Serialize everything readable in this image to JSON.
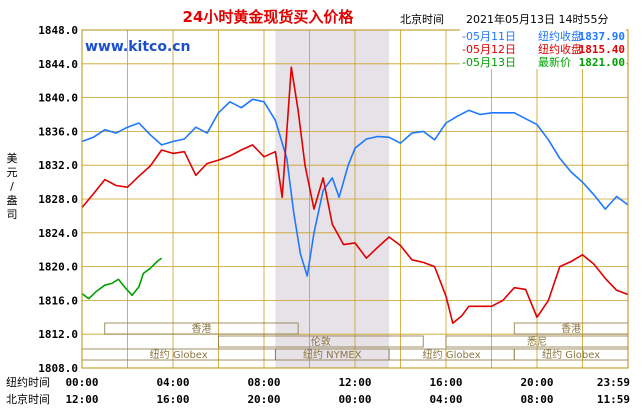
{
  "header": {
    "title": "24小时黄金现货买入价格",
    "tz_label": "北京时间",
    "datetime": "2021年05月13日 14时55分",
    "website": "www.kitco.cn"
  },
  "legend": [
    {
      "date": "-05月11日",
      "label": "纽约收盘",
      "value": "1837.90",
      "color": "#1f78ff"
    },
    {
      "date": "-05月12日",
      "label": "纽约收盘",
      "value": "1815.40",
      "color": "#e00000"
    },
    {
      "date": "-05月13日",
      "label": "最新价",
      "value": "1821.00",
      "color": "#00a000"
    }
  ],
  "ylabel": "美元/盎司",
  "colors": {
    "frame": "#b8900c",
    "grid": "#c9a020",
    "title": "#e00000",
    "website": "#1a4fd0",
    "label_blue": "#1f3fbf",
    "shade": "#e6e2e8",
    "market_text": "#8a7640"
  },
  "markets": [
    {
      "name": "香港",
      "start": 1.0,
      "end": 9.5
    },
    {
      "name": "伦敦",
      "start": 6.0,
      "end": 15.0
    },
    {
      "name": "纽约 Globex",
      "start": 0,
      "end": 8.5
    },
    {
      "name": "纽约 NYMEX",
      "start": 8.5,
      "end": 13.5
    },
    {
      "name": "纽约 Globex",
      "start": 13.5,
      "end": 19.0
    },
    {
      "name": "香港",
      "start": 19.0,
      "end": 24.0
    },
    {
      "name": "悉尼",
      "start": 16.0,
      "end": 24.0
    },
    {
      "name": "纽约 Globex",
      "start": 19.0,
      "end": 24.0
    }
  ],
  "axis_rows": [
    {
      "label": "纽约时间",
      "ticks": [
        "00:00",
        "04:00",
        "08:00",
        "12:00",
        "16:00",
        "20:00",
        "23:59"
      ]
    },
    {
      "label": "北京时间",
      "ticks": [
        "12:00",
        "16:00",
        "20:00",
        "00:00",
        "04:00",
        "08:00",
        "11:59"
      ]
    }
  ],
  "chart_data": {
    "type": "line",
    "x_unit": "hours since 00:00 New York time",
    "xlim": [
      0,
      24
    ],
    "ylim": [
      1808.0,
      1848.0
    ],
    "yticks": [
      "1848.0",
      "1844.0",
      "1840.0",
      "1836.0",
      "1832.0",
      "1828.0",
      "1824.0",
      "1820.0",
      "1816.0",
      "1812.0",
      "1808.0"
    ],
    "shaded_range": [
      8.5,
      13.5
    ],
    "series": [
      {
        "name": "05月11日",
        "color": "#1f78ff",
        "points": [
          [
            0,
            1834.8
          ],
          [
            0.5,
            1835.3
          ],
          [
            1,
            1836.2
          ],
          [
            1.5,
            1835.8
          ],
          [
            2,
            1836.5
          ],
          [
            2.5,
            1837.0
          ],
          [
            3,
            1835.6
          ],
          [
            3.5,
            1834.4
          ],
          [
            4,
            1834.8
          ],
          [
            4.5,
            1835.1
          ],
          [
            5,
            1836.5
          ],
          [
            5.5,
            1835.8
          ],
          [
            6,
            1838.2
          ],
          [
            6.5,
            1839.5
          ],
          [
            7,
            1838.8
          ],
          [
            7.5,
            1839.8
          ],
          [
            8,
            1839.5
          ],
          [
            8.5,
            1837.3
          ],
          [
            9,
            1832.8
          ],
          [
            9.3,
            1826.5
          ],
          [
            9.6,
            1821.5
          ],
          [
            9.9,
            1818.9
          ],
          [
            10.2,
            1824.0
          ],
          [
            10.6,
            1829.0
          ],
          [
            11,
            1830.5
          ],
          [
            11.3,
            1828.2
          ],
          [
            11.7,
            1832.0
          ],
          [
            12,
            1834.0
          ],
          [
            12.5,
            1835.1
          ],
          [
            13,
            1835.4
          ],
          [
            13.5,
            1835.3
          ],
          [
            14,
            1834.6
          ],
          [
            14.5,
            1835.8
          ],
          [
            15,
            1836.0
          ],
          [
            15.5,
            1835.0
          ],
          [
            16,
            1837.0
          ],
          [
            16.5,
            1837.8
          ],
          [
            17,
            1838.5
          ],
          [
            17.5,
            1838.0
          ],
          [
            18,
            1838.2
          ],
          [
            19,
            1838.2
          ],
          [
            19.5,
            1837.5
          ],
          [
            20,
            1836.8
          ],
          [
            20.5,
            1835.0
          ],
          [
            21,
            1832.8
          ],
          [
            21.5,
            1831.2
          ],
          [
            22,
            1830.0
          ],
          [
            22.5,
            1828.5
          ],
          [
            23,
            1826.8
          ],
          [
            23.5,
            1828.3
          ],
          [
            24,
            1827.3
          ]
        ]
      },
      {
        "name": "05月12日",
        "color": "#e00000",
        "points": [
          [
            0,
            1827.0
          ],
          [
            0.5,
            1828.6
          ],
          [
            1,
            1830.3
          ],
          [
            1.5,
            1829.6
          ],
          [
            2,
            1829.4
          ],
          [
            2.5,
            1830.7
          ],
          [
            3,
            1831.9
          ],
          [
            3.5,
            1833.8
          ],
          [
            4,
            1833.4
          ],
          [
            4.5,
            1833.6
          ],
          [
            5,
            1830.8
          ],
          [
            5.5,
            1832.2
          ],
          [
            6,
            1832.6
          ],
          [
            6.5,
            1833.1
          ],
          [
            7,
            1833.8
          ],
          [
            7.5,
            1834.4
          ],
          [
            8,
            1833.0
          ],
          [
            8.5,
            1833.6
          ],
          [
            8.8,
            1828.2
          ],
          [
            9.0,
            1836.0
          ],
          [
            9.2,
            1843.6
          ],
          [
            9.5,
            1838.5
          ],
          [
            9.8,
            1832.0
          ],
          [
            10.2,
            1826.8
          ],
          [
            10.6,
            1830.5
          ],
          [
            11,
            1825.0
          ],
          [
            11.5,
            1822.6
          ],
          [
            12,
            1822.8
          ],
          [
            12.5,
            1821.0
          ],
          [
            13,
            1822.3
          ],
          [
            13.5,
            1823.5
          ],
          [
            14,
            1822.5
          ],
          [
            14.5,
            1820.8
          ],
          [
            15,
            1820.5
          ],
          [
            15.5,
            1820.0
          ],
          [
            16,
            1816.5
          ],
          [
            16.3,
            1813.3
          ],
          [
            16.7,
            1814.2
          ],
          [
            17,
            1815.3
          ],
          [
            18,
            1815.3
          ],
          [
            18.5,
            1816.0
          ],
          [
            19,
            1817.5
          ],
          [
            19.5,
            1817.3
          ],
          [
            20,
            1814.0
          ],
          [
            20.5,
            1816.0
          ],
          [
            21,
            1820.0
          ],
          [
            21.5,
            1820.6
          ],
          [
            22,
            1821.4
          ],
          [
            22.5,
            1820.3
          ],
          [
            23,
            1818.6
          ],
          [
            23.5,
            1817.2
          ],
          [
            24,
            1816.7
          ]
        ]
      },
      {
        "name": "05月13日",
        "color": "#00a000",
        "points": [
          [
            0,
            1816.8
          ],
          [
            0.3,
            1816.2
          ],
          [
            0.6,
            1817.0
          ],
          [
            1.0,
            1817.8
          ],
          [
            1.3,
            1818.0
          ],
          [
            1.6,
            1818.5
          ],
          [
            1.9,
            1817.5
          ],
          [
            2.2,
            1816.6
          ],
          [
            2.5,
            1817.6
          ],
          [
            2.7,
            1819.2
          ],
          [
            3.0,
            1819.8
          ],
          [
            3.3,
            1820.6
          ],
          [
            3.5,
            1821.0
          ]
        ]
      }
    ]
  }
}
